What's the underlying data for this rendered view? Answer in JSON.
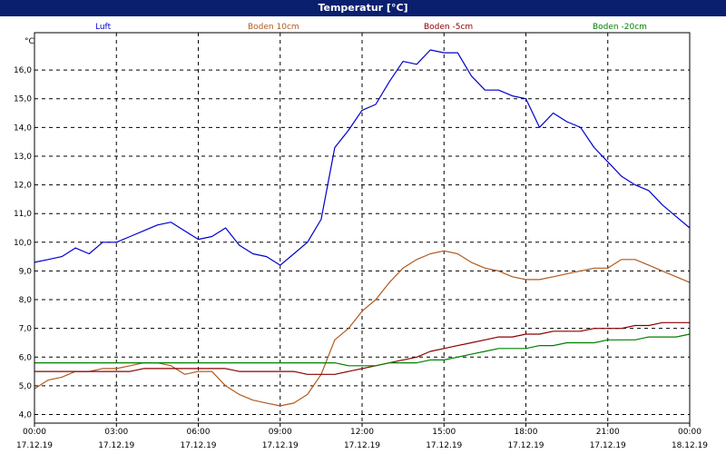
{
  "window": {
    "title": "Temperatur [°C]"
  },
  "chart_data": {
    "type": "line",
    "title": "Temperatur [°C]",
    "ylabel": "°C",
    "xlabel": "",
    "ylim": [
      3.7,
      17.3
    ],
    "xlim": [
      0,
      24
    ],
    "grid": true,
    "legend": "top",
    "y_ticks": [
      "4,0",
      "5,0",
      "6,0",
      "7,0",
      "8,0",
      "9,0",
      "10,0",
      "11,0",
      "12,0",
      "13,0",
      "14,0",
      "15,0",
      "16,0"
    ],
    "x_ticks": [
      {
        "time": "00:00",
        "date": "17.12.19"
      },
      {
        "time": "03:00",
        "date": "17.12.19"
      },
      {
        "time": "06:00",
        "date": "17.12.19"
      },
      {
        "time": "09:00",
        "date": "17.12.19"
      },
      {
        "time": "12:00",
        "date": "17.12.19"
      },
      {
        "time": "15:00",
        "date": "17.12.19"
      },
      {
        "time": "18:00",
        "date": "17.12.19"
      },
      {
        "time": "21:00",
        "date": "17.12.19"
      },
      {
        "time": "00:00",
        "date": "18.12.19"
      }
    ],
    "x": [
      0,
      0.5,
      1,
      1.5,
      2,
      2.5,
      3,
      3.5,
      4,
      4.5,
      5,
      5.5,
      6,
      6.5,
      7,
      7.5,
      8,
      8.5,
      9,
      9.5,
      10,
      10.5,
      11,
      11.5,
      12,
      12.5,
      13,
      13.5,
      14,
      14.5,
      15,
      15.5,
      16,
      16.5,
      17,
      17.5,
      18,
      18.5,
      19,
      19.5,
      20,
      20.5,
      21,
      21.5,
      22,
      22.5,
      23,
      23.5,
      24
    ],
    "series": [
      {
        "name": "Luft",
        "color": "#0000cc",
        "values": [
          9.3,
          9.4,
          9.5,
          9.8,
          9.6,
          10.0,
          10.0,
          10.2,
          10.4,
          10.6,
          10.7,
          10.4,
          10.1,
          10.2,
          10.5,
          9.9,
          9.6,
          9.5,
          9.2,
          9.6,
          10.0,
          10.8,
          13.3,
          13.9,
          14.6,
          14.8,
          15.6,
          16.3,
          16.2,
          16.7,
          16.6,
          16.6,
          15.8,
          15.3,
          15.3,
          15.1,
          15.0,
          14.0,
          14.5,
          14.2,
          14.0,
          13.3,
          12.8,
          12.3,
          12.0,
          11.8,
          11.3,
          10.9,
          10.5
        ]
      },
      {
        "name": "Boden 10cm",
        "color": "#b05a1e",
        "values": [
          4.9,
          5.2,
          5.3,
          5.5,
          5.5,
          5.6,
          5.6,
          5.7,
          5.8,
          5.8,
          5.7,
          5.4,
          5.5,
          5.5,
          5.0,
          4.7,
          4.5,
          4.4,
          4.3,
          4.4,
          4.7,
          5.4,
          6.6,
          7.0,
          7.6,
          8.0,
          8.6,
          9.1,
          9.4,
          9.6,
          9.7,
          9.6,
          9.3,
          9.1,
          9.0,
          8.8,
          8.7,
          8.7,
          8.8,
          8.9,
          9.0,
          9.1,
          9.1,
          9.4,
          9.4,
          9.2,
          9.0,
          8.8,
          8.6
        ]
      },
      {
        "name": "Boden -5cm",
        "color": "#8b0000",
        "values": [
          5.5,
          5.5,
          5.5,
          5.5,
          5.5,
          5.5,
          5.5,
          5.5,
          5.6,
          5.6,
          5.6,
          5.6,
          5.6,
          5.6,
          5.6,
          5.5,
          5.5,
          5.5,
          5.5,
          5.5,
          5.4,
          5.4,
          5.4,
          5.5,
          5.6,
          5.7,
          5.8,
          5.9,
          6.0,
          6.2,
          6.3,
          6.4,
          6.5,
          6.6,
          6.7,
          6.7,
          6.8,
          6.8,
          6.9,
          6.9,
          6.9,
          7.0,
          7.0,
          7.0,
          7.1,
          7.1,
          7.2,
          7.2,
          7.2
        ]
      },
      {
        "name": "Boden -20cm",
        "color": "#008000",
        "values": [
          5.8,
          5.8,
          5.8,
          5.8,
          5.8,
          5.8,
          5.8,
          5.8,
          5.8,
          5.8,
          5.8,
          5.8,
          5.8,
          5.8,
          5.8,
          5.8,
          5.8,
          5.8,
          5.8,
          5.8,
          5.8,
          5.8,
          5.8,
          5.7,
          5.7,
          5.7,
          5.8,
          5.8,
          5.8,
          5.9,
          5.9,
          6.0,
          6.1,
          6.2,
          6.3,
          6.3,
          6.3,
          6.4,
          6.4,
          6.5,
          6.5,
          6.5,
          6.6,
          6.6,
          6.6,
          6.7,
          6.7,
          6.7,
          6.8
        ]
      }
    ]
  }
}
